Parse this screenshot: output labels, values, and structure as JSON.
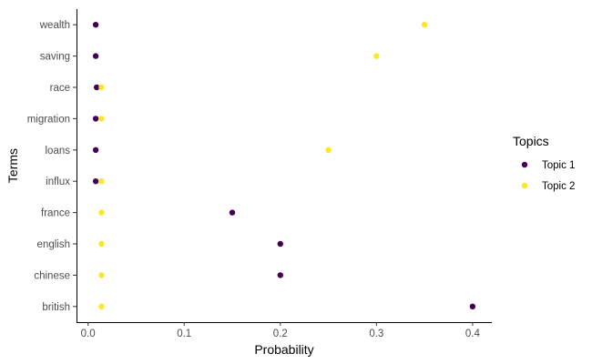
{
  "chart_data": {
    "type": "scatter",
    "title": "",
    "xlabel": "Probability",
    "ylabel": "Terms",
    "xlim": [
      -0.012,
      0.42
    ],
    "x_ticks": [
      0.0,
      0.1,
      0.2,
      0.3,
      0.4
    ],
    "x_tick_labels": [
      "0.0",
      "0.1",
      "0.2",
      "0.3",
      "0.4"
    ],
    "categories": [
      "british",
      "chinese",
      "english",
      "france",
      "influx",
      "loans",
      "migration",
      "race",
      "saving",
      "wealth"
    ],
    "grid": false,
    "legend": {
      "title": "Topics",
      "position": "right"
    },
    "series": [
      {
        "name": "Topic 1",
        "color": "#440154",
        "points": [
          {
            "term": "wealth",
            "value": 0.008
          },
          {
            "term": "saving",
            "value": 0.008
          },
          {
            "term": "race",
            "value": 0.009
          },
          {
            "term": "migration",
            "value": 0.008
          },
          {
            "term": "loans",
            "value": 0.008
          },
          {
            "term": "influx",
            "value": 0.008
          },
          {
            "term": "france",
            "value": 0.15
          },
          {
            "term": "english",
            "value": 0.2
          },
          {
            "term": "chinese",
            "value": 0.2
          },
          {
            "term": "british",
            "value": 0.4
          }
        ]
      },
      {
        "name": "Topic 2",
        "color": "#fde725",
        "points": [
          {
            "term": "wealth",
            "value": 0.35
          },
          {
            "term": "saving",
            "value": 0.3
          },
          {
            "term": "race",
            "value": 0.014
          },
          {
            "term": "migration",
            "value": 0.014
          },
          {
            "term": "loans",
            "value": 0.25
          },
          {
            "term": "influx",
            "value": 0.014
          },
          {
            "term": "france",
            "value": 0.014
          },
          {
            "term": "english",
            "value": 0.014
          },
          {
            "term": "chinese",
            "value": 0.014
          },
          {
            "term": "british",
            "value": 0.014
          }
        ]
      }
    ]
  }
}
